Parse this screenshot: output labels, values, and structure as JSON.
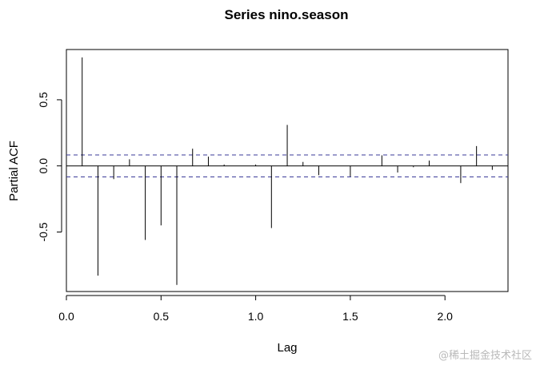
{
  "chart_data": {
    "type": "bar",
    "title": "Series  nino.season",
    "xlabel": "Lag",
    "ylabel": "Partial ACF",
    "xlim": [
      0.0,
      2.333
    ],
    "ylim": [
      -0.95,
      0.88
    ],
    "x_ticks": [
      0.0,
      0.5,
      1.0,
      1.5,
      2.0
    ],
    "x_tick_labels": [
      "0.0",
      "0.5",
      "1.0",
      "1.5",
      "2.0"
    ],
    "y_ticks": [
      -0.5,
      0.0,
      0.5
    ],
    "y_tick_labels": [
      "-0.5",
      "0.0",
      "0.5"
    ],
    "confidence_bound": 0.083,
    "colors": {
      "lines": "#000000",
      "ci": "#3a3a99"
    },
    "points": [
      {
        "lag": 0.0833,
        "pacf": 0.82
      },
      {
        "lag": 0.1667,
        "pacf": -0.83
      },
      {
        "lag": 0.25,
        "pacf": -0.1
      },
      {
        "lag": 0.3333,
        "pacf": 0.05
      },
      {
        "lag": 0.4167,
        "pacf": -0.56
      },
      {
        "lag": 0.5,
        "pacf": -0.45
      },
      {
        "lag": 0.5833,
        "pacf": -0.9
      },
      {
        "lag": 0.6667,
        "pacf": 0.13
      },
      {
        "lag": 0.75,
        "pacf": 0.07
      },
      {
        "lag": 0.8333,
        "pacf": 0.01
      },
      {
        "lag": 0.9167,
        "pacf": 0.0
      },
      {
        "lag": 1.0,
        "pacf": 0.01
      },
      {
        "lag": 1.0833,
        "pacf": -0.47
      },
      {
        "lag": 1.1667,
        "pacf": 0.31
      },
      {
        "lag": 1.25,
        "pacf": 0.03
      },
      {
        "lag": 1.3333,
        "pacf": -0.07
      },
      {
        "lag": 1.4167,
        "pacf": 0.0
      },
      {
        "lag": 1.5,
        "pacf": -0.08
      },
      {
        "lag": 1.5833,
        "pacf": 0.0
      },
      {
        "lag": 1.6667,
        "pacf": 0.08
      },
      {
        "lag": 1.75,
        "pacf": -0.05
      },
      {
        "lag": 1.8333,
        "pacf": -0.01
      },
      {
        "lag": 1.9167,
        "pacf": 0.04
      },
      {
        "lag": 2.0,
        "pacf": 0.0
      },
      {
        "lag": 2.0833,
        "pacf": -0.13
      },
      {
        "lag": 2.1667,
        "pacf": 0.15
      },
      {
        "lag": 2.25,
        "pacf": -0.03
      }
    ]
  },
  "watermark": "@稀土掘金技术社区"
}
